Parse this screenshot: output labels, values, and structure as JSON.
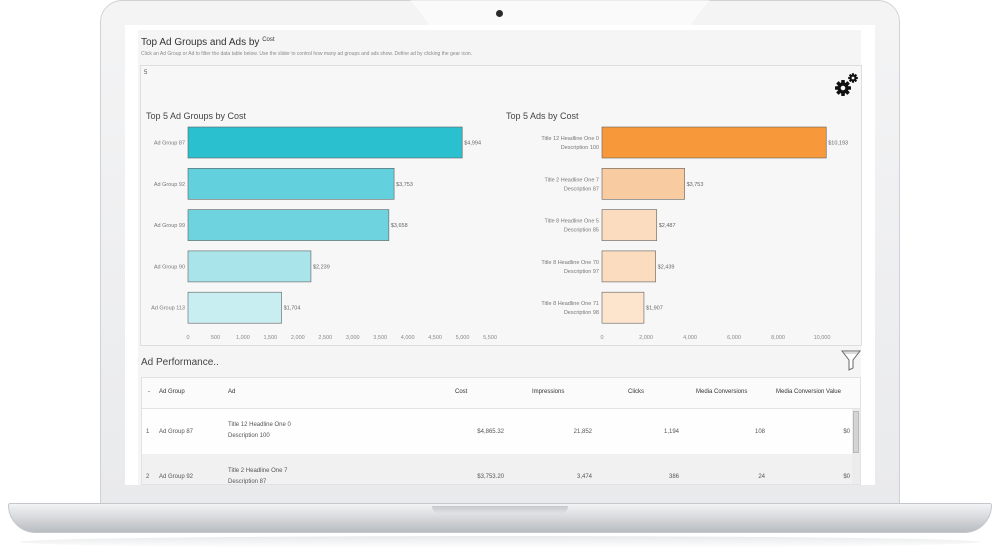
{
  "dashboard": {
    "title": "Top Ad Groups and Ads by",
    "title_param": "Cost",
    "subtitle": "Click an Ad Group or Ad to filter the data table below. Use the slider to control how many ad groups and ads show. Define ad by clicking the gear icon.",
    "slider_value": "5",
    "gear_icon": "gear-icon",
    "filter_icon": "filter-icon"
  },
  "chart_data": [
    {
      "type": "bar",
      "orientation": "horizontal",
      "title": "Top 5 Ad Groups by Cost",
      "categories": [
        "Ad Group 87",
        "Ad Group 92",
        "Ad Group 99",
        "Ad Group 90",
        "Ad Group 113"
      ],
      "values": [
        4994,
        3753,
        3658,
        2239,
        1704
      ],
      "value_labels": [
        "$4,994",
        "$3,753",
        "$3,658",
        "$2,239",
        "$1,704"
      ],
      "colors": [
        "#2ac0cf",
        "#62d0dd",
        "#6fd3df",
        "#a8e4ea",
        "#c8eef2"
      ],
      "xlim": [
        0,
        5500
      ],
      "xticks": [
        0,
        500,
        1000,
        1500,
        2000,
        2500,
        3000,
        3500,
        4000,
        4500,
        5000,
        5500
      ],
      "xtick_labels": [
        "0",
        "500",
        "1,000",
        "1,500",
        "2,000",
        "2,500",
        "3,000",
        "3,500",
        "4,000",
        "4,500",
        "5,000",
        "5,500"
      ],
      "grid": false
    },
    {
      "type": "bar",
      "orientation": "horizontal",
      "title": "Top 5 Ads by Cost",
      "categories": [
        [
          "Title 12 Headline One 0",
          "Description 100"
        ],
        [
          "Title 2 Headline One 7",
          "Description 87"
        ],
        [
          "Title 8 Headline One 5",
          "Description 85"
        ],
        [
          "Title 8 Headline One 70",
          "Description 97"
        ],
        [
          "Title 8 Headline One 71",
          "Description 98"
        ]
      ],
      "values": [
        10193,
        3753,
        2487,
        2439,
        1907
      ],
      "value_labels": [
        "$10,193",
        "$3,753",
        "$2,487",
        "$2,439",
        "$1,907"
      ],
      "colors": [
        "#f7993a",
        "#f9cba1",
        "#fbdcbf",
        "#fbdcbf",
        "#fde4cc"
      ],
      "xlim": [
        0,
        11000
      ],
      "xticks": [
        0,
        2000,
        4000,
        6000,
        8000,
        10000
      ],
      "xtick_labels": [
        "0",
        "2,000",
        "4,000",
        "6,000",
        "8,000",
        "10,000"
      ],
      "grid": false
    }
  ],
  "performance": {
    "title": "Ad Performance..",
    "columns": [
      "Ad Group",
      "Ad",
      "Cost",
      "Impressions",
      "Clicks",
      "Media Conversions",
      "Media Conversion Value"
    ],
    "sort_indicator": "-",
    "rows": [
      {
        "index": "1",
        "ad_group": "Ad Group 87",
        "ad_line1": "Title 12 Headline One 0",
        "ad_line2": "Description 100",
        "cost": "$4,865.32",
        "impressions": "21,852",
        "clicks": "1,194",
        "conversions": "108",
        "conv_value": "$0"
      },
      {
        "index": "2",
        "ad_group": "Ad Group 92",
        "ad_line1": "Title 2 Headline One 7",
        "ad_line2": "Description 87",
        "cost": "$3,753.20",
        "impressions": "3,474",
        "clicks": "386",
        "conversions": "24",
        "conv_value": "$0"
      }
    ]
  }
}
